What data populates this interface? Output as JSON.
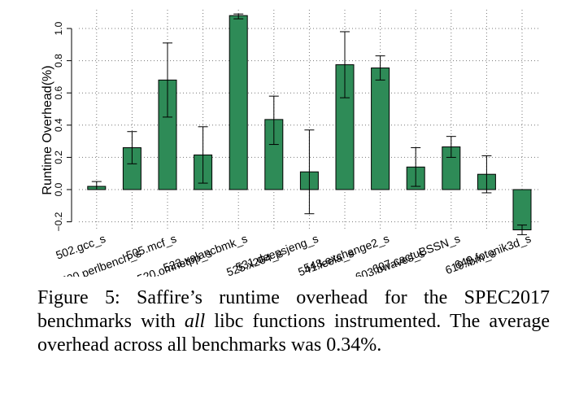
{
  "chart_data": {
    "type": "bar",
    "title": "",
    "xlabel": "",
    "ylabel": "Runtime Overhead(%)",
    "ylim": [
      -0.2,
      1.1
    ],
    "yticks": [
      -0.2,
      0.0,
      0.2,
      0.4,
      0.6,
      0.8,
      1.0
    ],
    "ytick_labels": [
      "−0.2",
      "0.0",
      "0.2",
      "0.4",
      "0.6",
      "0.8",
      "1.0"
    ],
    "grid": "vertical dotted per category",
    "bar_color": "#2e8b57",
    "categories": [
      "502.gcc_s",
      "500.perlbench_s",
      "505.mcf_s",
      "520.omnetpp_s",
      "523.xalancbmk_s",
      "525.x264_s",
      "531.deepsjeng_s",
      "541.leela_s",
      "548.exchange2_s",
      "603.bwaves_s",
      "607.cactuBSSN_s",
      "619.lbm_s",
      "649.fotonik3d_s"
    ],
    "values": [
      0.02,
      0.26,
      0.68,
      0.215,
      1.08,
      0.435,
      0.11,
      0.775,
      0.755,
      0.14,
      0.265,
      0.095,
      -0.25
    ],
    "error_low": [
      0.0,
      0.16,
      0.45,
      0.04,
      1.06,
      0.28,
      -0.15,
      0.57,
      0.68,
      0.02,
      0.2,
      -0.02,
      -0.28
    ],
    "error_high": [
      0.05,
      0.36,
      0.91,
      0.39,
      1.09,
      0.58,
      0.37,
      0.98,
      0.83,
      0.26,
      0.33,
      0.21,
      -0.22
    ]
  },
  "caption": {
    "prefix": "Figure 5: Saffire’s runtime overhead for the SPEC2017 benchmarks with ",
    "emphasis": "all",
    "suffix": " libc functions instrumented. The average overhead across all benchmarks was 0.34%."
  }
}
